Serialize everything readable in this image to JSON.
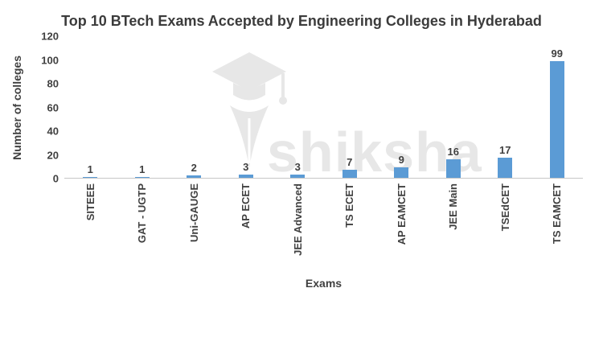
{
  "chart_data": {
    "type": "bar",
    "title": "Top 10 BTech Exams Accepted by Engineering Colleges in Hyderabad",
    "categories": [
      "SITEEE",
      "GAT - UGTP",
      "Uni-GAUGE",
      "AP ECET",
      "JEE Advanced",
      "TS ECET",
      "AP EAMCET",
      "JEE Main",
      "TSEdCET",
      "TS EAMCET"
    ],
    "values": [
      1,
      1,
      2,
      3,
      3,
      7,
      9,
      16,
      17,
      99
    ],
    "xlabel": "Exams",
    "ylabel": "Number of colleges",
    "ylim": [
      0,
      120
    ],
    "yticks": [
      0,
      20,
      40,
      60,
      80,
      100,
      120
    ],
    "bar_color": "#5b9bd5",
    "grid": false,
    "legend_position": "none",
    "data_labels": true
  },
  "watermark": {
    "text": "shiksha",
    "icon": "graduation-cap-quill",
    "color": "#e7e7e7"
  }
}
